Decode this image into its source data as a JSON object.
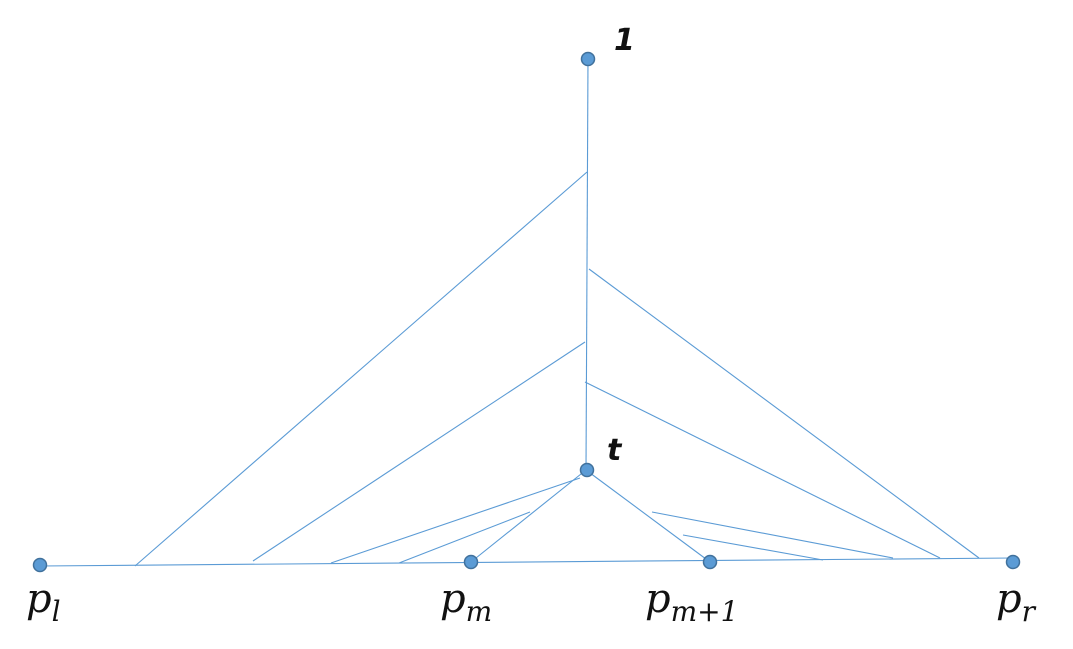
{
  "labels": {
    "root": "1",
    "t": "t",
    "pl": {
      "base": "p",
      "sub": "l"
    },
    "pm": {
      "base": "p",
      "sub": "m"
    },
    "pm1": {
      "base": "p",
      "sub": "m+1"
    },
    "pr": {
      "base": "p",
      "sub": "r"
    }
  },
  "colors": {
    "line": "#5b9bd5",
    "node_fill": "#5b9bd5",
    "node_stroke": "#41719c",
    "text": "#111111"
  }
}
